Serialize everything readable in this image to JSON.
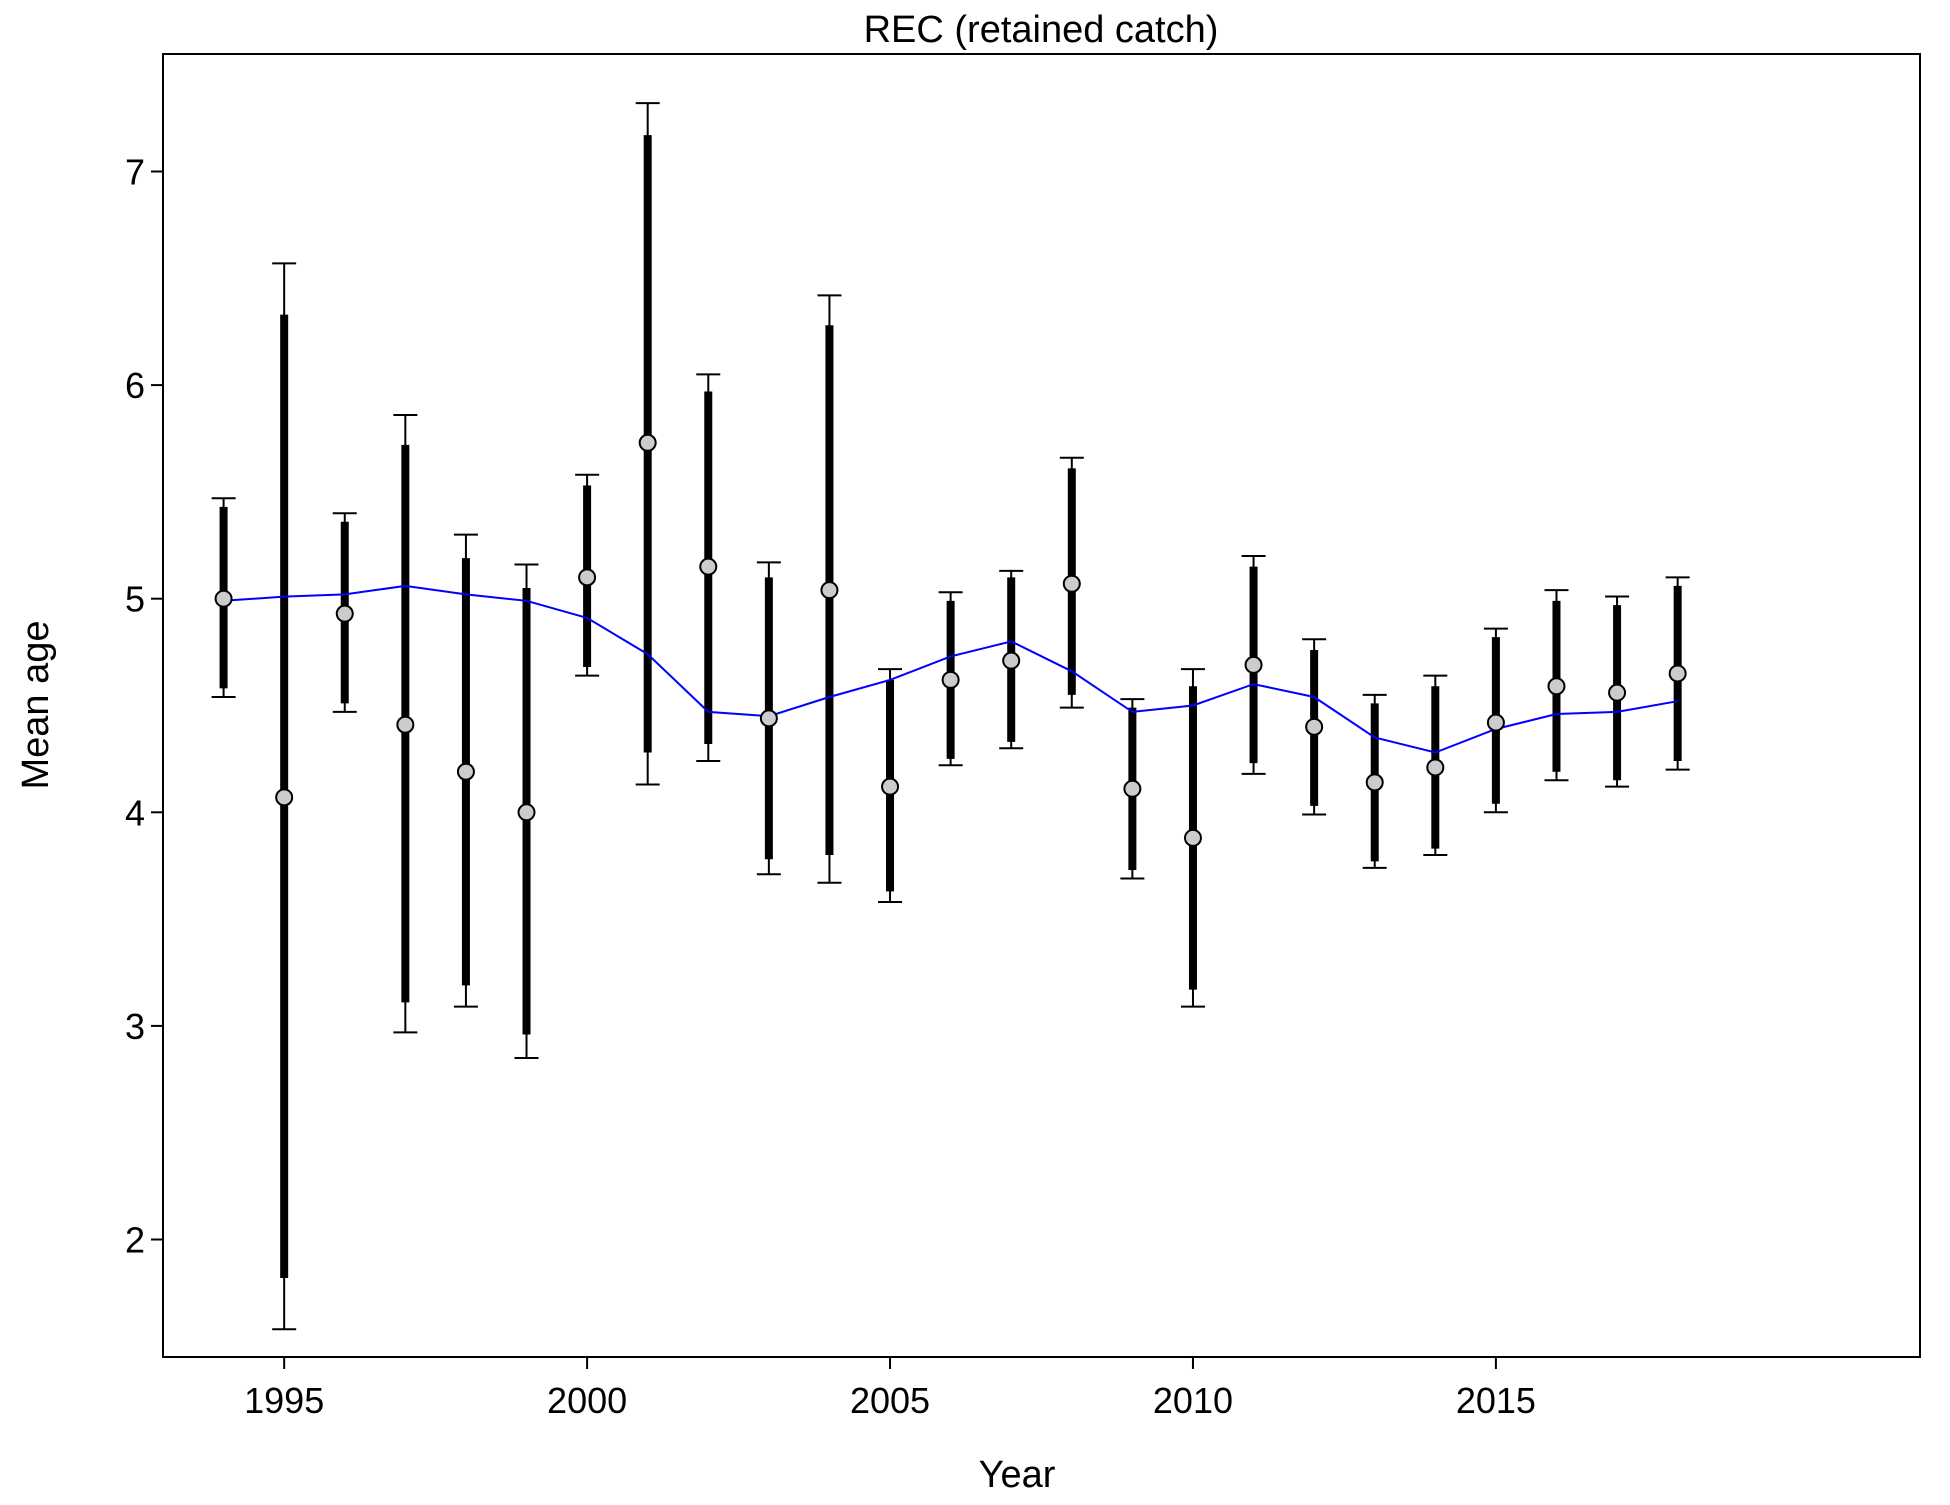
{
  "chart_data": {
    "type": "scatter",
    "title": "REC (retained catch)",
    "xlabel": "Year",
    "ylabel": "Mean age",
    "xlim": [
      1993.0,
      2022.0
    ],
    "ylim": [
      1.45,
      7.55
    ],
    "x_ticks": [
      1995,
      2000,
      2005,
      2010,
      2015
    ],
    "y_ticks": [
      2,
      3,
      4,
      5,
      6,
      7
    ],
    "grid": false,
    "legend": "none",
    "colors": {
      "observed_fill": "#cccccc",
      "observed_stroke": "#000000",
      "interval": "#000000",
      "expected_line": "#0000ff"
    },
    "series": [
      {
        "role": "observed",
        "marker": "circle",
        "x": [
          1994,
          1995,
          1996,
          1997,
          1998,
          1999,
          2000,
          2001,
          2002,
          2003,
          2004,
          2005,
          2006,
          2007,
          2008,
          2009,
          2010,
          2011,
          2012,
          2013,
          2014,
          2015,
          2016,
          2017,
          2018
        ],
        "y": [
          5.0,
          4.07,
          4.93,
          4.41,
          4.19,
          4.0,
          5.1,
          5.73,
          5.15,
          4.44,
          5.04,
          4.12,
          4.62,
          4.71,
          5.07,
          4.11,
          3.88,
          4.69,
          4.4,
          4.14,
          4.21,
          4.42,
          4.59,
          4.56,
          4.65
        ]
      },
      {
        "role": "interval-thick",
        "x": [
          1994,
          1995,
          1996,
          1997,
          1998,
          1999,
          2000,
          2001,
          2002,
          2003,
          2004,
          2005,
          2006,
          2007,
          2008,
          2009,
          2010,
          2011,
          2012,
          2013,
          2014,
          2015,
          2016,
          2017,
          2018
        ],
        "lower": [
          4.58,
          1.82,
          4.51,
          3.11,
          3.19,
          2.96,
          4.68,
          4.28,
          4.32,
          3.78,
          3.8,
          3.63,
          4.25,
          4.33,
          4.55,
          3.73,
          3.17,
          4.23,
          4.03,
          3.77,
          3.83,
          4.04,
          4.19,
          4.15,
          4.24
        ],
        "upper": [
          5.43,
          6.33,
          5.36,
          5.72,
          5.19,
          5.05,
          5.53,
          7.17,
          5.97,
          5.1,
          6.28,
          4.62,
          4.99,
          5.1,
          5.61,
          4.49,
          4.59,
          5.15,
          4.76,
          4.51,
          4.59,
          4.82,
          4.99,
          4.97,
          5.06
        ]
      },
      {
        "role": "interval-thin",
        "x": [
          1994,
          1995,
          1996,
          1997,
          1998,
          1999,
          2000,
          2001,
          2002,
          2003,
          2004,
          2005,
          2006,
          2007,
          2008,
          2009,
          2010,
          2011,
          2012,
          2013,
          2014,
          2015,
          2016,
          2017,
          2018
        ],
        "lower": [
          4.54,
          1.58,
          4.47,
          2.97,
          3.09,
          2.85,
          4.64,
          4.13,
          4.24,
          3.71,
          3.67,
          3.58,
          4.22,
          4.3,
          4.49,
          3.69,
          3.09,
          4.18,
          3.99,
          3.74,
          3.8,
          4.0,
          4.15,
          4.12,
          4.2
        ],
        "upper": [
          5.47,
          6.57,
          5.4,
          5.86,
          5.3,
          5.16,
          5.58,
          7.32,
          6.05,
          5.17,
          6.42,
          4.67,
          5.03,
          5.13,
          5.66,
          4.53,
          4.67,
          5.2,
          4.81,
          4.55,
          4.64,
          4.86,
          5.04,
          5.01,
          5.1
        ]
      },
      {
        "role": "expected",
        "marker": "line",
        "x": [
          1994,
          1995,
          1996,
          1997,
          1998,
          1999,
          2000,
          2001,
          2002,
          2003,
          2004,
          2005,
          2006,
          2007,
          2008,
          2009,
          2010,
          2011,
          2012,
          2013,
          2014,
          2015,
          2016,
          2017,
          2018
        ],
        "y": [
          4.99,
          5.01,
          5.02,
          5.06,
          5.02,
          4.99,
          4.91,
          4.74,
          4.47,
          4.45,
          4.54,
          4.62,
          4.73,
          4.8,
          4.66,
          4.47,
          4.5,
          4.6,
          4.54,
          4.35,
          4.28,
          4.39,
          4.46,
          4.47,
          4.52
        ]
      }
    ]
  }
}
